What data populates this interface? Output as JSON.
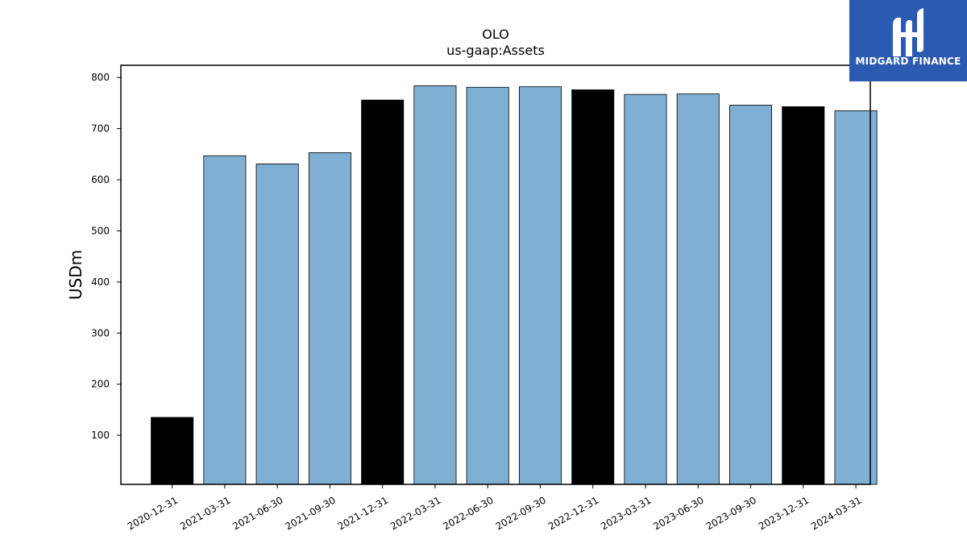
{
  "chart_data": {
    "type": "bar",
    "title": "OLO",
    "subtitle": "us-gaap:Assets",
    "xlabel": "",
    "ylabel": "USDm",
    "ylim": [
      4,
      824
    ],
    "yticks": [
      100,
      200,
      300,
      400,
      500,
      600,
      700,
      800
    ],
    "grid": false,
    "categories": [
      "2020-12-31",
      "2021-03-31",
      "2021-06-30",
      "2021-09-30",
      "2021-12-31",
      "2022-03-31",
      "2022-06-30",
      "2022-09-30",
      "2022-12-31",
      "2023-03-31",
      "2023-06-30",
      "2023-09-30",
      "2023-12-31",
      "2024-03-31"
    ],
    "values": [
      135,
      647,
      631,
      653,
      756,
      784,
      781,
      782,
      776,
      767,
      768,
      746,
      743,
      735
    ],
    "highlight": [
      true,
      false,
      false,
      false,
      true,
      false,
      false,
      false,
      true,
      false,
      false,
      false,
      true,
      false
    ],
    "colors": {
      "quarter": "#7fb0d3",
      "year_end": "#000000",
      "edge": "#000000"
    }
  },
  "logo": {
    "text": "MIDGARD FINANCE",
    "background": "#2b5bb0"
  }
}
